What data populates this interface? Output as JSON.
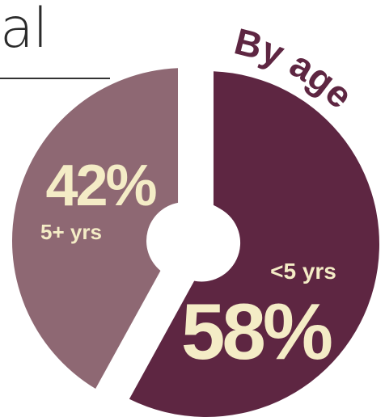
{
  "header": {
    "title_fragment": "al"
  },
  "colors": {
    "under_5": "#5e2642",
    "five_plus": "#8e6873",
    "label_text": "#f4ecc6",
    "badge_text": "#5e2642",
    "background": "#ffffff"
  },
  "chart_data": {
    "type": "pie",
    "title": "By age",
    "style": "donut",
    "slices": [
      {
        "label": "<5 yrs",
        "value": 58,
        "display": "58%"
      },
      {
        "label": "5+ yrs",
        "value": 42,
        "display": "42%"
      }
    ]
  }
}
